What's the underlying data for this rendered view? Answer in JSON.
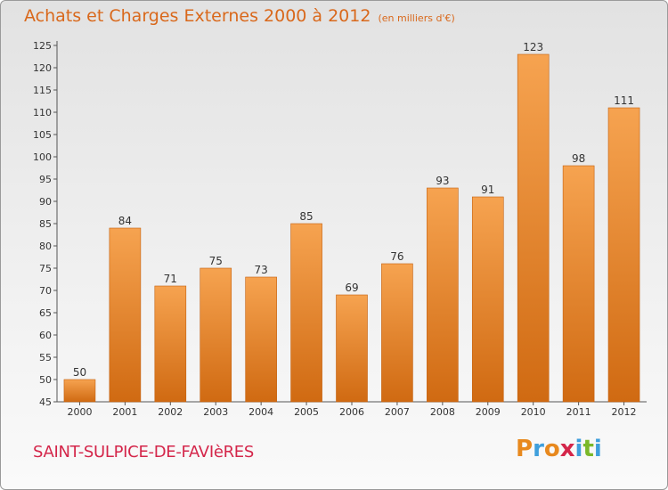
{
  "header": {
    "title": "Achats et Charges Externes 2000 à 2012",
    "unit": "(en milliers d'€)"
  },
  "footer": {
    "commune": "SAINT-SULPICE-DE-FAVIèRES",
    "logo_letters": [
      "P",
      "r",
      "o",
      "x",
      "i",
      "t",
      "i"
    ],
    "logo_colors": [
      "#e8891e",
      "#3f9fdc",
      "#e8891e",
      "#d4264a",
      "#3f9fdc",
      "#7ab829",
      "#3f9fdc"
    ]
  },
  "chart_data": {
    "type": "bar",
    "categories": [
      "2000",
      "2001",
      "2002",
      "2003",
      "2004",
      "2005",
      "2006",
      "2007",
      "2008",
      "2009",
      "2010",
      "2011",
      "2012"
    ],
    "values": [
      50,
      84,
      71,
      75,
      73,
      85,
      69,
      76,
      93,
      91,
      123,
      98,
      111
    ],
    "value_labels": [
      "50",
      "84",
      "71",
      "75",
      "73",
      "85",
      "69",
      "76",
      "93",
      "91",
      "123",
      "98",
      "111"
    ],
    "y_ticks": [
      "45",
      "50",
      "55",
      "60",
      "65",
      "70",
      "75",
      "80",
      "85",
      "90",
      "95",
      "100",
      "105",
      "110",
      "115",
      "120",
      "125"
    ],
    "ylim": [
      45,
      125
    ],
    "y_step": 5,
    "grid": false,
    "bar_color": "#f0922f"
  }
}
